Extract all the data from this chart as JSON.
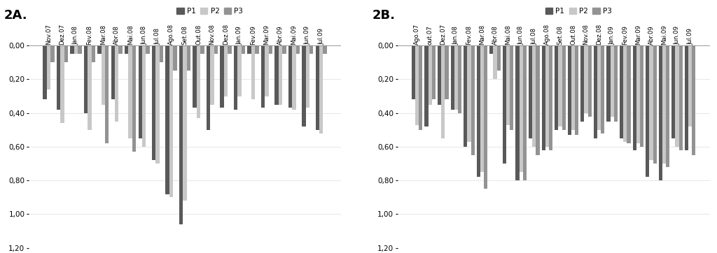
{
  "chart_A": {
    "title": "2A.",
    "categories": [
      "Nov.07",
      "Dez.07",
      "Jan.08",
      "Fev.08",
      "Mar.08",
      "Abr.08",
      "Mai.08",
      "Jun.08",
      "Jul.08",
      "Ago.08",
      "Set.08",
      "Out.08",
      "Nov.08",
      "Dez.08",
      "Jan.09",
      "Fev.09",
      "Mar.09",
      "Abr.09",
      "Mai.09",
      "Jun.09",
      "Jul.09"
    ],
    "P1": [
      0.32,
      0.38,
      0.05,
      0.4,
      0.05,
      0.32,
      0.05,
      0.55,
      0.68,
      0.88,
      1.06,
      0.37,
      0.5,
      0.37,
      0.38,
      0.05,
      0.37,
      0.35,
      0.37,
      0.48,
      0.5
    ],
    "P2": [
      0.26,
      0.46,
      0.05,
      0.5,
      0.35,
      0.45,
      0.55,
      0.6,
      0.7,
      0.9,
      0.92,
      0.43,
      0.35,
      0.3,
      0.3,
      0.32,
      0.3,
      0.35,
      0.38,
      0.37,
      0.52
    ],
    "P3": [
      0.1,
      0.1,
      0.05,
      0.1,
      0.58,
      0.05,
      0.63,
      0.05,
      0.1,
      0.15,
      0.15,
      0.05,
      0.05,
      0.05,
      0.05,
      0.05,
      0.05,
      0.05,
      0.05,
      0.05,
      0.05
    ]
  },
  "chart_B": {
    "title": "2B.",
    "categories": [
      "Ago.07",
      "out.07",
      "Dez.07",
      "Jan.08",
      "Fev.08",
      "Mar.08",
      "Abr.08",
      "Mai.08",
      "Jun.08",
      "Jul.08",
      "Ago.08",
      "Set.08",
      "Out.08",
      "Nov.08",
      "Dez.08",
      "Jan.09",
      "Fev.09",
      "Mar.09",
      "Abr.09",
      "Mai.09",
      "Jun.09",
      "Jul.09"
    ],
    "P1": [
      0.32,
      0.48,
      0.35,
      0.38,
      0.6,
      0.78,
      0.05,
      0.7,
      0.8,
      0.55,
      0.62,
      0.5,
      0.53,
      0.45,
      0.55,
      0.45,
      0.55,
      0.62,
      0.78,
      0.8,
      0.55,
      0.62
    ],
    "P2": [
      0.47,
      0.35,
      0.55,
      0.38,
      0.57,
      0.75,
      0.2,
      0.47,
      0.75,
      0.6,
      0.6,
      0.48,
      0.5,
      0.4,
      0.5,
      0.42,
      0.57,
      0.58,
      0.68,
      0.7,
      0.6,
      0.48
    ],
    "P3": [
      0.5,
      0.32,
      0.32,
      0.4,
      0.65,
      0.85,
      0.15,
      0.5,
      0.8,
      0.65,
      0.62,
      0.5,
      0.53,
      0.42,
      0.52,
      0.45,
      0.58,
      0.6,
      0.7,
      0.72,
      0.62,
      0.65
    ]
  },
  "colors": {
    "P1": "#595959",
    "P2": "#c8c8c8",
    "P3": "#939393"
  },
  "ytick_labels": [
    "0,00",
    "0,20",
    "0,40",
    "0,60",
    "0,80",
    "1,00",
    "1,20"
  ]
}
